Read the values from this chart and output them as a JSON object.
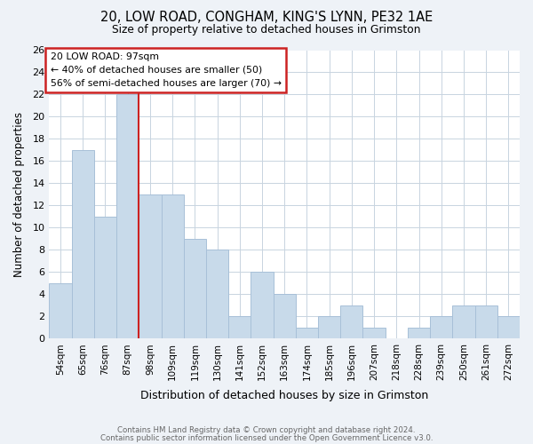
{
  "title1": "20, LOW ROAD, CONGHAM, KING'S LYNN, PE32 1AE",
  "title2": "Size of property relative to detached houses in Grimston",
  "xlabel": "Distribution of detached houses by size in Grimston",
  "ylabel": "Number of detached properties",
  "bar_color": "#c8daea",
  "bar_edgecolor": "#a8c0d8",
  "categories": [
    "54sqm",
    "65sqm",
    "76sqm",
    "87sqm",
    "98sqm",
    "109sqm",
    "119sqm",
    "130sqm",
    "141sqm",
    "152sqm",
    "163sqm",
    "174sqm",
    "185sqm",
    "196sqm",
    "207sqm",
    "218sqm",
    "228sqm",
    "239sqm",
    "250sqm",
    "261sqm",
    "272sqm"
  ],
  "values": [
    5,
    17,
    11,
    22,
    13,
    13,
    9,
    8,
    2,
    6,
    4,
    1,
    2,
    3,
    1,
    0,
    1,
    2,
    3,
    3,
    2
  ],
  "ylim": [
    0,
    26
  ],
  "yticks": [
    0,
    2,
    4,
    6,
    8,
    10,
    12,
    14,
    16,
    18,
    20,
    22,
    24,
    26
  ],
  "property_line_index": 4,
  "annotation_text1": "20 LOW ROAD: 97sqm",
  "annotation_text2": "← 40% of detached houses are smaller (50)",
  "annotation_text3": "56% of semi-detached houses are larger (70) →",
  "footer1": "Contains HM Land Registry data © Crown copyright and database right 2024.",
  "footer2": "Contains public sector information licensed under the Open Government Licence v3.0.",
  "background_color": "#eef2f7",
  "plot_bg_color": "#ffffff",
  "grid_color": "#c8d4e0",
  "annotation_box_color": "#cc2222",
  "red_line_color": "#cc2222"
}
